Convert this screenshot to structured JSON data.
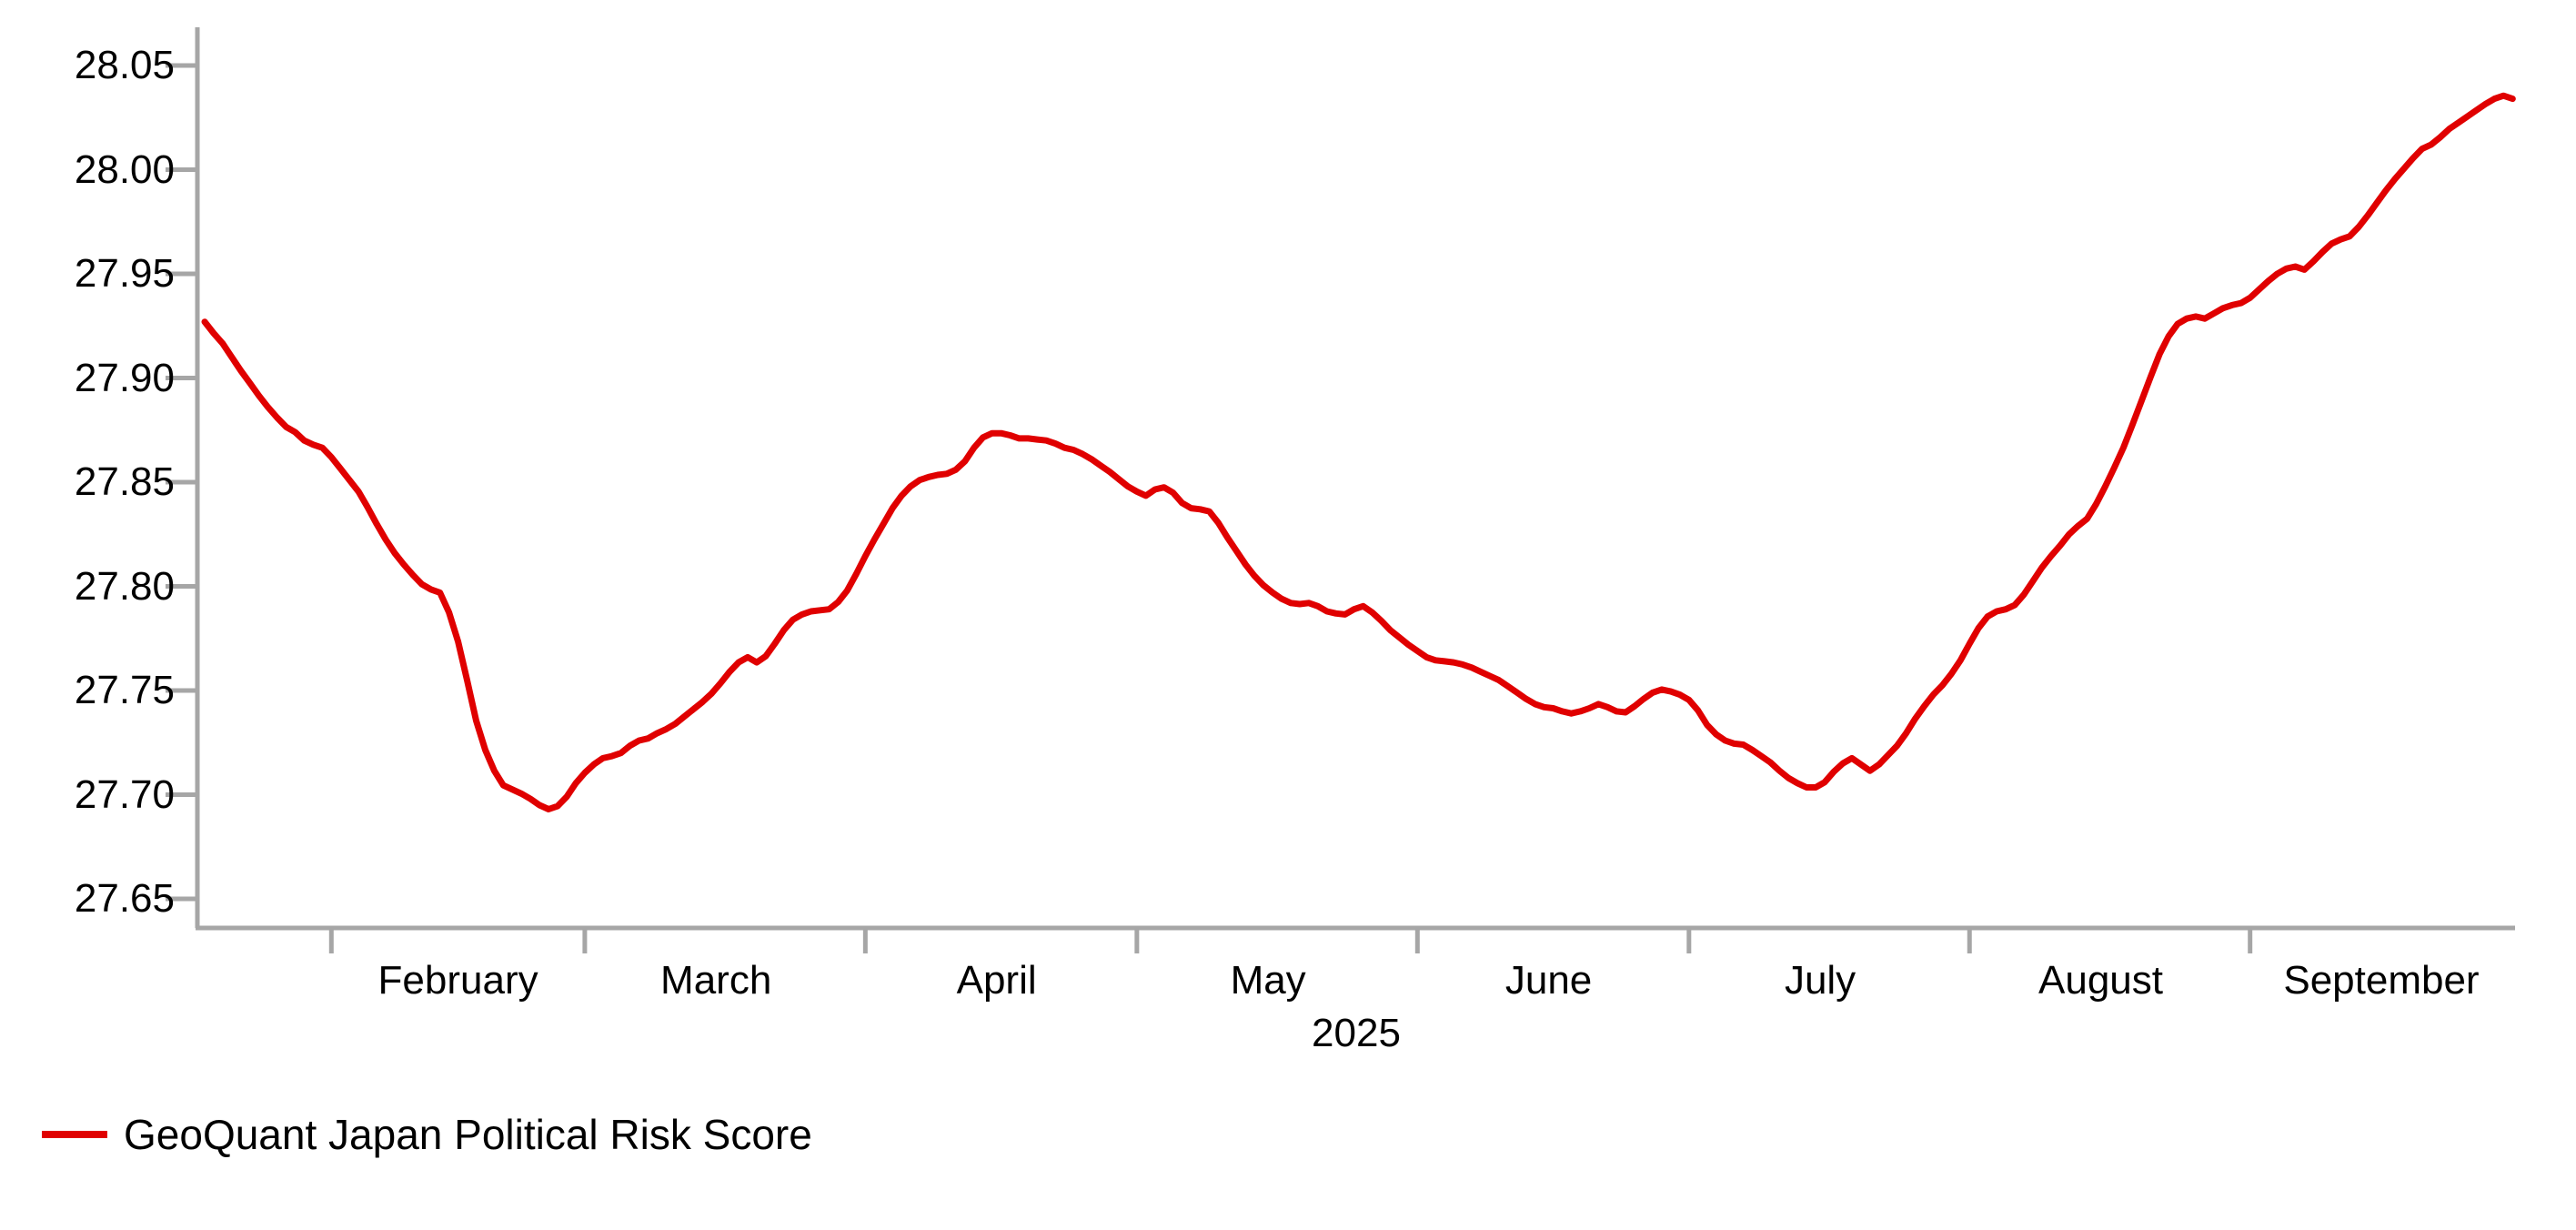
{
  "legend": {
    "label": "GeoQuant Japan Political Risk Score"
  },
  "colors": {
    "line": "#e00000",
    "axis": "#a6a6a6",
    "text": "#000000",
    "background": "#ffffff"
  },
  "chart_data": {
    "type": "line",
    "title": "",
    "xlabel": "2025",
    "ylabel": "",
    "series_name": "GeoQuant Japan Political Risk Score",
    "legend_position": "bottom-left",
    "grid": false,
    "ylim": [
      27.63,
      28.07
    ],
    "y_tick_labels": [
      "27.65",
      "27.70",
      "27.75",
      "27.80",
      "27.85",
      "27.90",
      "27.95",
      "28.00",
      "28.05"
    ],
    "y_tick_values": [
      27.65,
      27.7,
      27.75,
      27.8,
      27.85,
      27.9,
      27.95,
      28.0,
      28.05
    ],
    "x_tick_labels": [
      "February",
      "March",
      "April",
      "May",
      "June",
      "July",
      "August",
      "September"
    ],
    "x_start_date": "2025-01-18",
    "x_end_date": "2025-09-30",
    "x_unit": "day",
    "month_tick_day_offsets": [
      14,
      42,
      73,
      103,
      134,
      164,
      195,
      226
    ],
    "month_label_day_centers": [
      28,
      56.5,
      87.5,
      117.5,
      148.5,
      178.5,
      209.5,
      240.5
    ],
    "values": [
      27.927,
      27.9215,
      27.9165,
      27.91,
      27.9035,
      27.8975,
      27.8915,
      27.886,
      27.881,
      27.8765,
      27.874,
      27.87,
      27.868,
      27.8665,
      27.862,
      27.8565,
      27.851,
      27.8455,
      27.838,
      27.83,
      27.8225,
      27.816,
      27.8105,
      27.8055,
      27.801,
      27.7985,
      27.797,
      27.7875,
      27.7735,
      27.755,
      27.7355,
      27.7215,
      27.7115,
      27.7045,
      27.7025,
      27.7005,
      27.698,
      27.695,
      27.693,
      27.6945,
      27.699,
      27.7055,
      27.7105,
      27.7145,
      27.7175,
      27.7185,
      27.72,
      27.7235,
      27.726,
      27.727,
      27.7295,
      27.7315,
      27.734,
      27.7375,
      27.741,
      27.7445,
      27.7485,
      27.7535,
      27.759,
      27.7635,
      27.766,
      27.7635,
      27.7665,
      27.7725,
      27.779,
      27.784,
      27.7865,
      27.788,
      27.7885,
      27.789,
      27.7925,
      27.798,
      27.806,
      27.8145,
      27.8225,
      27.83,
      27.8375,
      27.8435,
      27.848,
      27.851,
      27.8525,
      27.8535,
      27.854,
      27.856,
      27.86,
      27.8665,
      27.8715,
      27.8735,
      27.8735,
      27.8725,
      27.871,
      27.871,
      27.8705,
      27.87,
      27.8685,
      27.8665,
      27.8655,
      27.8635,
      27.861,
      27.858,
      27.855,
      27.8515,
      27.848,
      27.8455,
      27.8435,
      27.8465,
      27.8475,
      27.845,
      27.84,
      27.8375,
      27.837,
      27.836,
      27.8305,
      27.8235,
      27.817,
      27.8105,
      27.805,
      27.8005,
      27.797,
      27.794,
      27.792,
      27.7915,
      27.792,
      27.7905,
      27.788,
      27.787,
      27.7865,
      27.789,
      27.7905,
      27.7875,
      27.7835,
      27.779,
      27.7755,
      27.772,
      27.769,
      27.766,
      27.7645,
      27.764,
      27.7635,
      27.7625,
      27.761,
      27.759,
      27.757,
      27.755,
      27.752,
      27.749,
      27.746,
      27.7435,
      27.742,
      27.7415,
      27.74,
      27.739,
      27.74,
      27.7415,
      27.7435,
      27.742,
      27.74,
      27.7395,
      27.7425,
      27.746,
      27.749,
      27.7505,
      27.7495,
      27.748,
      27.7455,
      27.7405,
      27.7335,
      27.729,
      27.726,
      27.7245,
      27.724,
      27.7215,
      27.7185,
      27.7155,
      27.7115,
      27.708,
      27.7055,
      27.7035,
      27.7035,
      27.706,
      27.711,
      27.715,
      27.7175,
      27.7145,
      27.7115,
      27.7145,
      27.719,
      27.7235,
      27.7295,
      27.7365,
      27.7425,
      27.748,
      27.7525,
      27.758,
      27.7645,
      27.7725,
      27.78,
      27.7855,
      27.788,
      27.789,
      27.791,
      27.796,
      27.8025,
      27.809,
      27.8145,
      27.8195,
      27.825,
      27.829,
      27.8325,
      27.8395,
      27.848,
      27.857,
      27.8665,
      27.8775,
      27.889,
      27.9005,
      27.9115,
      27.92,
      27.926,
      27.9285,
      27.9295,
      27.9285,
      27.931,
      27.9335,
      27.935,
      27.936,
      27.9385,
      27.9425,
      27.9465,
      27.95,
      27.9525,
      27.9535,
      27.952,
      27.956,
      27.9605,
      27.9645,
      27.9665,
      27.968,
      27.9725,
      27.978,
      27.984,
      27.99,
      27.9955,
      28.0005,
      28.0055,
      28.01,
      28.012,
      28.0155,
      28.0195,
      28.0225,
      28.0255,
      28.0285,
      28.0315,
      28.034,
      28.0355,
      28.034
    ]
  }
}
